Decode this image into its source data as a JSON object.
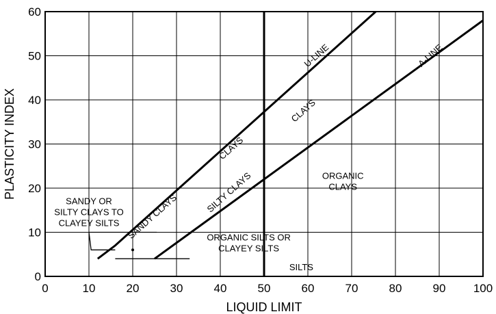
{
  "chart_data": {
    "type": "line",
    "title": "",
    "xlabel": "LIQUID LIMIT",
    "ylabel": "PLASTICITY INDEX",
    "xlim": [
      0,
      100
    ],
    "ylim": [
      0,
      60
    ],
    "xticks": [
      0,
      10,
      20,
      30,
      40,
      50,
      60,
      70,
      80,
      90,
      100
    ],
    "yticks": [
      0,
      10,
      20,
      30,
      40,
      50,
      60
    ],
    "grid": true,
    "series": [
      {
        "name": "U-LINE",
        "points": [
          [
            12,
            4
          ],
          [
            16,
            7
          ],
          [
            75.5,
            60
          ]
        ]
      },
      {
        "name": "A-LINE",
        "points": [
          [
            25,
            4
          ],
          [
            100,
            58
          ]
        ]
      }
    ],
    "boundaries": [
      {
        "points": [
          [
            50,
            0
          ],
          [
            50,
            60
          ]
        ]
      },
      {
        "points": [
          [
            10,
            10
          ],
          [
            25.5,
            10
          ]
        ]
      },
      {
        "points": [
          [
            10,
            10
          ],
          [
            10.5,
            6
          ],
          [
            16,
            6
          ]
        ]
      },
      {
        "points": [
          [
            16,
            4
          ],
          [
            33,
            4
          ]
        ]
      }
    ],
    "markers": [
      [
        20,
        6
      ]
    ],
    "annotations": [
      {
        "lines": [
          "U-LINE"
        ],
        "x": 62,
        "y": 50,
        "rotate": true
      },
      {
        "lines": [
          "A-LINE"
        ],
        "x": 88,
        "y": 50,
        "rotate": true
      },
      {
        "lines": [
          "CLAYS"
        ],
        "x": 59,
        "y": 37.5,
        "rotate": true
      },
      {
        "lines": [
          "CLAYS"
        ],
        "x": 42.5,
        "y": 29,
        "rotate": true
      },
      {
        "lines": [
          "SILTY CLAYS"
        ],
        "x": 42,
        "y": 19,
        "rotate": true
      },
      {
        "lines": [
          "SANDY CLAYS"
        ],
        "x": 24.5,
        "y": 13.5,
        "rotate": true
      },
      {
        "lines": [
          "ORGANIC",
          "CLAYS"
        ],
        "x": 68,
        "y": 21.5,
        "rotate": false
      },
      {
        "lines": [
          "SANDY OR",
          "SILTY CLAYS TO",
          "CLAYEY SILTS"
        ],
        "x": 10,
        "y": 14.5,
        "rotate": false
      },
      {
        "lines": [
          "ORGANIC SILTS OR",
          "CLAYEY SILTS"
        ],
        "x": 46.5,
        "y": 7.5,
        "rotate": false
      },
      {
        "lines": [
          "SILTS"
        ],
        "x": 58.5,
        "y": 2,
        "rotate": false
      }
    ]
  }
}
